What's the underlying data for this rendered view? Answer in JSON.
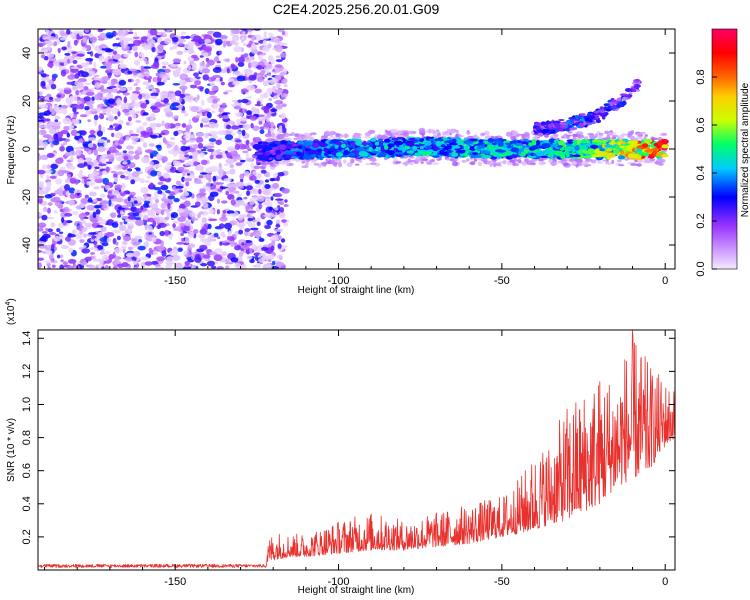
{
  "title": "C2E4.2025.256.20.01.G09",
  "chart_data": [
    {
      "type": "heatmap",
      "xlabel": "Height of straight line (km)",
      "ylabel": "Frequency (Hz)",
      "xlim": [
        -192,
        3
      ],
      "ylim": [
        -50,
        50
      ],
      "xticks": [
        -150,
        -100,
        -50,
        0
      ],
      "xtick_labels": [
        "-150",
        "-100",
        "-50",
        "0"
      ],
      "yticks": [
        -40,
        -20,
        0,
        20,
        40
      ],
      "ytick_labels": [
        "-40",
        "-20",
        "0",
        "20",
        "40"
      ],
      "colorbar": {
        "label": "Normalized spectral amplitude",
        "range": [
          0,
          1
        ],
        "ticks": [
          0.0,
          0.2,
          0.4,
          0.6,
          0.8
        ],
        "tick_labels": [
          "0.0",
          "0.2",
          "0.4",
          "0.6",
          "0.8"
        ],
        "colors": [
          "#f5eaff",
          "#cc99ff",
          "#9933ff",
          "#0000ff",
          "#00ccff",
          "#00ff66",
          "#ccff00",
          "#ffcc00",
          "#ff6600",
          "#ff0000",
          "#ff0066"
        ]
      },
      "noise_region": {
        "x_from": -192,
        "x_to": -122,
        "typical_amplitude": 0.1
      },
      "main_band": {
        "x": [
          -125,
          -100,
          -75,
          -50,
          -25,
          0
        ],
        "freq_hz": [
          -1,
          0,
          1,
          0,
          0,
          0
        ],
        "amplitude": [
          0.3,
          0.4,
          0.45,
          0.45,
          0.5,
          0.9
        ]
      },
      "secondary_band": {
        "x": [
          -40,
          -30,
          -20,
          -12,
          -8
        ],
        "freq_hz": [
          8,
          10,
          14,
          22,
          28
        ],
        "amplitude": [
          0.25,
          0.3,
          0.3,
          0.25,
          0.2
        ]
      }
    },
    {
      "type": "line",
      "xlabel": "Height of straight line (km)",
      "ylabel": "SNR (10 * v/v)",
      "y_multiplier": "(x10",
      "y_multiplier_exponent": "4",
      "y_multiplier_close": ")",
      "xlim": [
        -192,
        3
      ],
      "ylim": [
        0,
        1.45
      ],
      "xticks": [
        -150,
        -100,
        -50,
        0
      ],
      "xtick_labels": [
        "-150",
        "-100",
        "-50",
        "0"
      ],
      "yticks": [
        0.2,
        0.4,
        0.6,
        0.8,
        1.0,
        1.2,
        1.4
      ],
      "ytick_labels": [
        "0.2",
        "0.4",
        "0.6",
        "0.8",
        "1.0",
        "1.2",
        "1.4"
      ],
      "series": [
        {
          "name": "SNR",
          "color": "#e8302d",
          "x": [
            -192,
            -180,
            -160,
            -140,
            -125,
            -120,
            -115,
            -110,
            -100,
            -90,
            -80,
            -70,
            -60,
            -50,
            -45,
            -40,
            -35,
            -30,
            -25,
            -20,
            -15,
            -10,
            -5,
            0,
            3
          ],
          "y_baseline": [
            0.02,
            0.02,
            0.02,
            0.02,
            0.02,
            0.06,
            0.08,
            0.08,
            0.1,
            0.12,
            0.12,
            0.14,
            0.16,
            0.2,
            0.22,
            0.24,
            0.28,
            0.3,
            0.35,
            0.4,
            0.5,
            0.55,
            0.6,
            0.75,
            0.8
          ],
          "y_peak": [
            0.04,
            0.04,
            0.04,
            0.04,
            0.04,
            0.24,
            0.22,
            0.22,
            0.3,
            0.35,
            0.3,
            0.35,
            0.4,
            0.45,
            0.55,
            0.7,
            0.8,
            1.0,
            1.1,
            1.2,
            1.2,
            1.45,
            1.25,
            1.15,
            1.1
          ]
        }
      ]
    }
  ]
}
